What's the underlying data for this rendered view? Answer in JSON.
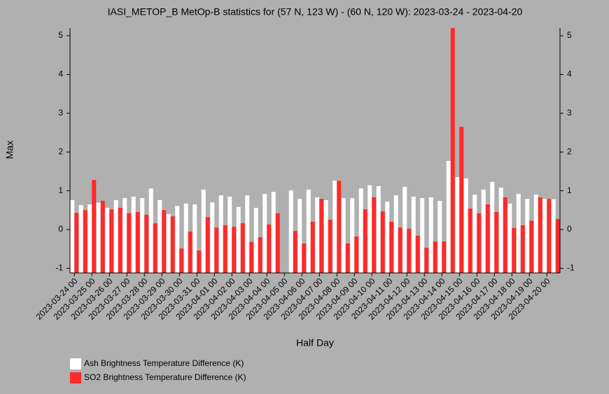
{
  "chart_data": {
    "type": "bar",
    "title": "IASI_METOP_B MetOp-B statistics for (57 N, 123 W) - (60 N, 120 W): 2023-03-24 - 2023-04-20",
    "x_label": "Half Day",
    "y_label": "Max",
    "categories": [
      "2023-03-24 00",
      null,
      "2023-03-25 00",
      null,
      "2023-03-26 00",
      null,
      "2023-03-27 00",
      null,
      "2023-03-28 00",
      null,
      "2023-03-29 00",
      null,
      "2023-03-30 00",
      null,
      "2023-03-31 00",
      null,
      "2023-04-01 00",
      null,
      "2023-04-02 00",
      null,
      "2023-04-03 00",
      null,
      "2023-04-04 00",
      null,
      "2023-04-05 00",
      null,
      "2023-04-06 00",
      null,
      "2023-04-07 00",
      null,
      "2023-04-08 00",
      null,
      "2023-04-09 00",
      null,
      "2023-04-10 00",
      null,
      "2023-04-11 00",
      null,
      "2023-04-12 00",
      null,
      "2023-04-13 00",
      null,
      "2023-04-14 00",
      null,
      "2023-04-15 00",
      null,
      "2023-04-16 00",
      null,
      "2023-04-17 00",
      null,
      "2023-04-18 00",
      null,
      "2023-04-19 00",
      null,
      "2023-04-20 00",
      null
    ],
    "series": [
      {
        "name": "Ash Brightness Temperature Difference (K)",
        "color": "#ffffff",
        "values": [
          0.76,
          0.63,
          0.65,
          0.69,
          0.56,
          0.76,
          0.81,
          0.85,
          0.81,
          1.06,
          0.76,
          0.4,
          0.61,
          0.67,
          0.65,
          1.03,
          0.7,
          0.88,
          0.85,
          0.58,
          0.88,
          0.56,
          0.92,
          0.97,
          null,
          1.01,
          0.79,
          1.03,
          0.83,
          0.76,
          1.26,
          0.81,
          0.81,
          1.06,
          1.14,
          1.12,
          0.72,
          0.88,
          1.1,
          0.85,
          0.81,
          0.83,
          0.74,
          1.77,
          1.35,
          1.32,
          0.9,
          1.03,
          1.23,
          1.08,
          0.67,
          0.92,
          0.79,
          0.9,
          0.79,
          0.78
        ]
      },
      {
        "name": "SO2 Brightness Temperature Difference (K)",
        "color": "#ff2a2a",
        "values": [
          0.43,
          0.5,
          1.28,
          0.74,
          0.52,
          0.56,
          0.42,
          0.45,
          0.38,
          0.16,
          0.5,
          0.34,
          -0.49,
          -0.05,
          -0.54,
          0.32,
          0.05,
          0.11,
          0.07,
          0.16,
          -0.32,
          -0.2,
          0.13,
          0.42,
          null,
          -0.04,
          -0.36,
          0.2,
          0.79,
          0.25,
          1.26,
          -0.36,
          -0.18,
          0.52,
          0.83,
          0.47,
          0.2,
          0.05,
          0.02,
          -0.16,
          -0.47,
          -0.31,
          -0.31,
          5.2,
          2.65,
          0.54,
          0.42,
          0.65,
          0.45,
          0.83,
          0.04,
          0.11,
          0.23,
          0.83,
          0.79,
          0.27
        ]
      }
    ],
    "ylim": [
      -1.12,
      5.2
    ],
    "yticks": [
      -1,
      0,
      1,
      2,
      3,
      4,
      5
    ]
  }
}
